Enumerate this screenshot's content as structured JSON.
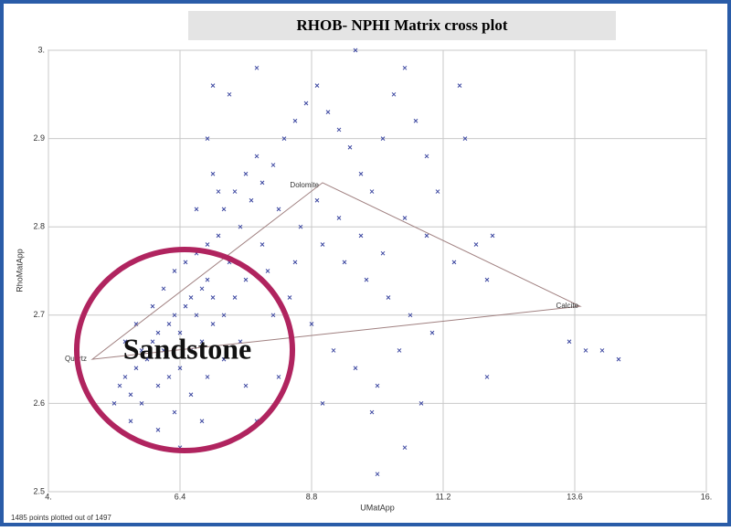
{
  "chart_data": {
    "type": "scatter",
    "title": "RHOB- NPHI Matrix cross plot",
    "x_label": "UMatApp",
    "y_label": "RhoMatApp",
    "footer": "1485 points plotted out of 1497",
    "annotation": "Sandstone",
    "xlim": [
      4,
      16
    ],
    "ylim": [
      2.5,
      3
    ],
    "xticks": [
      {
        "value": 4,
        "label": "4."
      },
      6.4,
      8.8,
      11.2,
      13.6,
      {
        "value": 16,
        "label": "16."
      }
    ],
    "yticks": [
      {
        "value": 2.5,
        "label": "2.5"
      },
      2.6,
      2.7,
      2.8,
      2.9,
      {
        "value": 3,
        "label": "3."
      }
    ],
    "grid": true,
    "minerals": [
      {
        "name": "Quartz",
        "x": 4.8,
        "y": 2.65
      },
      {
        "name": "Dolomite",
        "x": 9.0,
        "y": 2.85
      },
      {
        "name": "Calcite",
        "x": 13.7,
        "y": 2.71
      }
    ],
    "series": [
      {
        "color": "#3b46a0",
        "x": [
          5.2,
          5.3,
          5.4,
          5.5,
          5.6,
          5.7,
          5.8,
          5.9,
          6.0,
          6.1,
          6.2,
          6.3,
          6.4,
          6.5,
          6.6,
          6.7,
          6.8,
          6.9,
          7.0,
          5.5,
          5.7,
          6.0,
          6.2,
          6.4,
          6.6,
          6.8,
          7.0,
          7.2,
          7.4,
          5.4,
          5.6,
          5.9,
          6.1,
          6.3,
          6.5,
          6.7,
          6.9,
          7.1,
          6.0,
          6.3,
          6.6,
          6.9,
          7.2,
          7.5,
          6.4,
          6.8,
          7.2,
          7.4,
          7.6,
          7.8,
          7.5,
          7.7,
          7.9,
          8.1,
          8.3,
          8.5,
          8.7,
          8.9,
          9.1,
          9.3,
          9.5,
          9.7,
          9.9,
          10.1,
          10.3,
          10.5,
          10.7,
          10.9,
          11.1,
          11.5,
          11.6,
          7.0,
          7.3,
          7.8,
          9.6,
          8.2,
          8.6,
          9.0,
          9.4,
          9.8,
          10.2,
          10.6,
          11.0,
          11.4,
          11.8,
          12.0,
          12.1,
          8.0,
          8.4,
          8.8,
          9.2,
          9.6,
          10.0,
          10.4,
          10.8,
          8.2,
          7.8,
          7.6,
          9.0,
          9.9,
          10.5,
          10.0,
          7.3,
          7.6,
          7.9,
          8.1,
          8.5,
          8.9,
          9.3,
          9.7,
          10.1,
          10.5,
          10.9,
          13.5,
          13.8,
          14.1,
          14.4,
          12.0,
          6.7,
          7.0,
          6.9,
          7.1
        ],
        "values": [
          2.6,
          2.62,
          2.63,
          2.61,
          2.64,
          2.66,
          2.65,
          2.67,
          2.68,
          2.66,
          2.69,
          2.7,
          2.68,
          2.71,
          2.72,
          2.7,
          2.73,
          2.74,
          2.72,
          2.58,
          2.6,
          2.62,
          2.63,
          2.64,
          2.66,
          2.67,
          2.69,
          2.7,
          2.72,
          2.67,
          2.69,
          2.71,
          2.73,
          2.75,
          2.76,
          2.77,
          2.78,
          2.79,
          2.57,
          2.59,
          2.61,
          2.63,
          2.65,
          2.67,
          2.55,
          2.58,
          2.82,
          2.84,
          2.86,
          2.88,
          2.8,
          2.83,
          2.85,
          2.87,
          2.9,
          2.92,
          2.94,
          2.96,
          2.93,
          2.91,
          2.89,
          2.86,
          2.84,
          2.9,
          2.95,
          2.98,
          2.92,
          2.88,
          2.84,
          2.96,
          2.9,
          2.96,
          2.95,
          2.98,
          3.0,
          2.82,
          2.8,
          2.78,
          2.76,
          2.74,
          2.72,
          2.7,
          2.68,
          2.76,
          2.78,
          2.74,
          2.79,
          2.75,
          2.72,
          2.69,
          2.66,
          2.64,
          2.62,
          2.66,
          2.6,
          2.63,
          2.58,
          2.62,
          2.6,
          2.59,
          2.55,
          2.52,
          2.76,
          2.74,
          2.78,
          2.7,
          2.76,
          2.83,
          2.81,
          2.79,
          2.77,
          2.81,
          2.79,
          2.67,
          2.66,
          2.66,
          2.65,
          2.63,
          2.82,
          2.86,
          2.9,
          2.84
        ]
      }
    ]
  }
}
